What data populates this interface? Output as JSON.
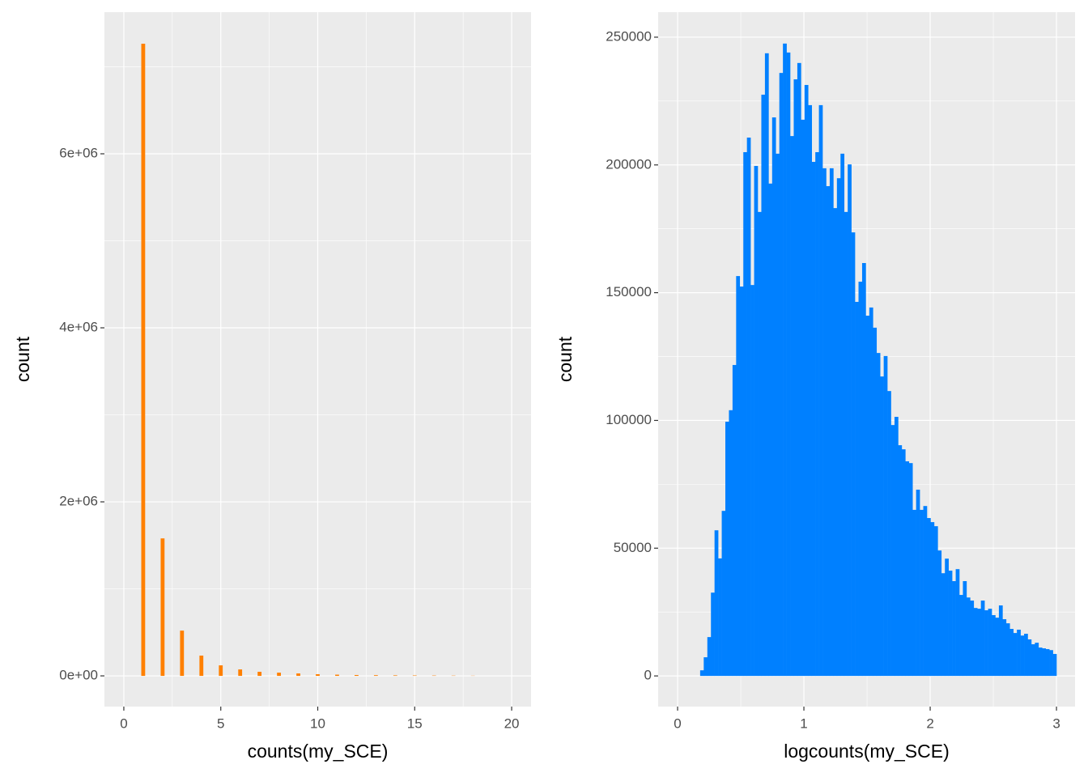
{
  "chart_data": [
    {
      "type": "bar",
      "x_label": "counts(my_SCE)",
      "y_label": "count",
      "color": "#ff8000",
      "grid": true,
      "x": [
        1,
        2,
        3,
        4,
        5,
        6,
        7,
        8,
        9,
        10,
        11,
        12,
        13,
        14,
        15,
        16,
        17,
        18
      ],
      "values": [
        7265000,
        1580000,
        520000,
        233000,
        121000,
        74000,
        47000,
        37000,
        28000,
        19000,
        14000,
        10000,
        8000,
        6000,
        5000,
        4000,
        3000,
        2000
      ],
      "xlim": [
        -1,
        21
      ],
      "xticks": [
        0,
        5,
        10,
        15,
        20
      ],
      "minor_xticks": [
        2.5,
        7.5,
        12.5,
        17.5
      ],
      "ylim": [
        -353000,
        7628000
      ],
      "yticks": [
        {
          "value": 0,
          "label": "0e+00"
        },
        {
          "value": 2000000,
          "label": "2e+06"
        },
        {
          "value": 4000000,
          "label": "4e+06"
        },
        {
          "value": 6000000,
          "label": "6e+06"
        }
      ],
      "minor_yticks": [
        1000000,
        3000000,
        5000000,
        7000000
      ]
    },
    {
      "type": "histogram",
      "x_label": "logcounts(my_SCE)",
      "y_label": "count",
      "color": "#0080ff",
      "grid": true,
      "bins": [
        0.1785,
        0.207,
        0.2355,
        0.264,
        0.2925,
        0.321,
        0.3495,
        0.378,
        0.4065,
        0.435,
        0.4635,
        0.492,
        0.5205,
        0.549,
        0.5775,
        0.606,
        0.6345,
        0.663,
        0.6915,
        0.72,
        0.7485,
        0.777,
        0.8055,
        0.834,
        0.8625,
        0.891,
        0.9195,
        0.948,
        0.9765,
        1.005,
        1.0335,
        1.062,
        1.0905,
        1.119,
        1.1475,
        1.176,
        1.2045,
        1.233,
        1.2615,
        1.29,
        1.3185,
        1.347,
        1.3755,
        1.404,
        1.4325,
        1.461,
        1.4895,
        1.518,
        1.5465,
        1.575,
        1.6035,
        1.632,
        1.6605,
        1.689,
        1.7175,
        1.746,
        1.7745,
        1.803,
        1.8315,
        1.86,
        1.8885,
        1.917,
        1.9455,
        1.974,
        2.0025,
        2.031,
        2.0595,
        2.088,
        2.1165,
        2.145,
        2.1735,
        2.202,
        2.2305,
        2.259,
        2.2875,
        2.316,
        2.3445,
        2.373,
        2.4015,
        2.43,
        2.4585,
        2.487,
        2.5155,
        2.544,
        2.5725,
        2.601,
        2.6295,
        2.658,
        2.6865,
        2.715,
        2.7435,
        2.772,
        2.8005,
        2.829,
        2.8575,
        2.886,
        2.9145,
        2.943,
        2.9715,
        3.0
      ],
      "values": [
        2200,
        7300,
        15200,
        32600,
        57000,
        46000,
        64600,
        99500,
        104000,
        121700,
        156500,
        152400,
        205000,
        210700,
        153000,
        199600,
        181600,
        227500,
        243700,
        192700,
        218600,
        204400,
        236000,
        247500,
        244000,
        211300,
        233500,
        239900,
        217700,
        231300,
        223400,
        201200,
        205000,
        223400,
        198700,
        191700,
        198700,
        183100,
        194800,
        204400,
        181600,
        200200,
        173600,
        146400,
        154300,
        161600,
        141000,
        144200,
        136300,
        126400,
        117200,
        125200,
        111500,
        98200,
        101400,
        90300,
        88700,
        84000,
        83300,
        65000,
        72900,
        65000,
        66500,
        61800,
        60200,
        58600,
        49100,
        40200,
        45900,
        41200,
        37100,
        41800,
        31700,
        37100,
        30700,
        29500,
        26600,
        26300,
        29500,
        25700,
        26300,
        23800,
        22800,
        27600,
        22200,
        20600,
        18400,
        16800,
        18100,
        15800,
        16500,
        14300,
        12400,
        13000,
        11100,
        10800,
        10500,
        10100,
        8600
      ],
      "xlim": [
        -0.154,
        3.147
      ],
      "xticks": [
        0,
        1,
        2,
        3
      ],
      "minor_xticks": [
        0.5,
        1.5,
        2.5
      ],
      "ylim": [
        -12000,
        259800
      ],
      "yticks": [
        0,
        50000,
        100000,
        150000,
        200000,
        250000
      ],
      "minor_yticks": [
        25000,
        75000,
        125000,
        175000,
        225000
      ]
    }
  ]
}
